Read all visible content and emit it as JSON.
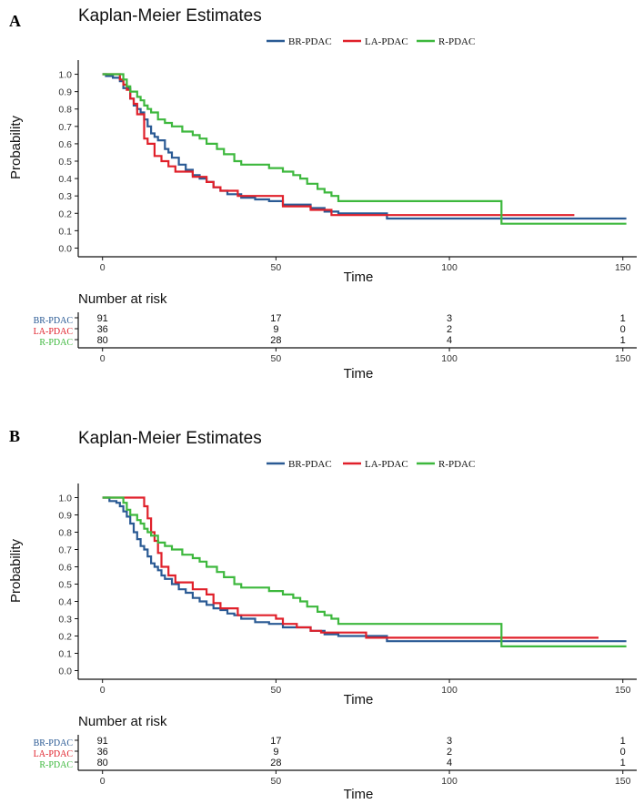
{
  "series_colors": {
    "BR-PDAC": "#2a5a94",
    "LA-PDAC": "#e0202a",
    "R-PDAC": "#3db83d"
  },
  "chart_data": [
    {
      "panel_label": "A",
      "type": "line",
      "title": "Kaplan-Meier Estimates",
      "xlabel": "Time",
      "ylabel": "Probability",
      "xlim": [
        -7,
        154
      ],
      "ylim": [
        -0.05,
        1.05
      ],
      "xticks": [
        0,
        50,
        100,
        150
      ],
      "yticks": [
        0.0,
        0.1,
        0.2,
        0.3,
        0.4,
        0.5,
        0.6,
        0.7,
        0.8,
        0.9,
        1.0
      ],
      "legend": "top",
      "series": [
        {
          "name": "BR-PDAC",
          "x": [
            0,
            1,
            3,
            5,
            6,
            8,
            9,
            10,
            11,
            12,
            13,
            14,
            15,
            16,
            18,
            19,
            20,
            22,
            24,
            26,
            28,
            30,
            32,
            34,
            36,
            40,
            44,
            48,
            52,
            56,
            60,
            64,
            68,
            82,
            151
          ],
          "y": [
            1.0,
            0.99,
            0.98,
            0.96,
            0.92,
            0.86,
            0.82,
            0.8,
            0.78,
            0.74,
            0.7,
            0.66,
            0.64,
            0.62,
            0.57,
            0.55,
            0.52,
            0.48,
            0.45,
            0.42,
            0.4,
            0.38,
            0.35,
            0.33,
            0.31,
            0.29,
            0.28,
            0.27,
            0.25,
            0.25,
            0.23,
            0.21,
            0.2,
            0.17,
            0.17
          ]
        },
        {
          "name": "LA-PDAC",
          "x": [
            0,
            5,
            6,
            7,
            8,
            9,
            10,
            12,
            13,
            15,
            17,
            19,
            21,
            26,
            30,
            32,
            34,
            39,
            44,
            51,
            52,
            56,
            60,
            63,
            66,
            76,
            80,
            136
          ],
          "y": [
            1.0,
            0.97,
            0.94,
            0.91,
            0.86,
            0.83,
            0.77,
            0.63,
            0.6,
            0.53,
            0.5,
            0.47,
            0.44,
            0.41,
            0.38,
            0.35,
            0.33,
            0.3,
            0.3,
            0.3,
            0.24,
            0.24,
            0.22,
            0.22,
            0.19,
            0.19,
            0.19,
            0.19
          ]
        },
        {
          "name": "R-PDAC",
          "x": [
            0,
            4,
            6,
            7,
            8,
            10,
            11,
            12,
            13,
            14,
            16,
            18,
            20,
            23,
            26,
            28,
            30,
            33,
            35,
            38,
            40,
            42,
            48,
            52,
            55,
            57,
            59,
            62,
            64,
            66,
            68,
            76,
            114,
            115,
            151
          ],
          "y": [
            1.0,
            1.0,
            0.97,
            0.93,
            0.9,
            0.87,
            0.85,
            0.82,
            0.8,
            0.78,
            0.74,
            0.72,
            0.7,
            0.67,
            0.65,
            0.63,
            0.6,
            0.57,
            0.54,
            0.5,
            0.48,
            0.48,
            0.46,
            0.44,
            0.42,
            0.4,
            0.37,
            0.34,
            0.32,
            0.3,
            0.27,
            0.27,
            0.27,
            0.14,
            0.14
          ]
        }
      ],
      "risk_table": {
        "title": "Number at risk",
        "times": [
          0,
          50,
          100,
          150
        ],
        "rows": [
          {
            "name": "BR-PDAC",
            "counts": [
              "91",
              "17",
              "3",
              "1"
            ]
          },
          {
            "name": "LA-PDAC",
            "counts": [
              "36",
              "9",
              "2",
              "0"
            ]
          },
          {
            "name": "R-PDAC",
            "counts": [
              "80",
              "28",
              "4",
              "1"
            ]
          }
        ],
        "xlabel": "Time"
      }
    },
    {
      "panel_label": "B",
      "type": "line",
      "title": "Kaplan-Meier Estimates",
      "xlabel": "Time",
      "ylabel": "Probability",
      "xlim": [
        -7,
        154
      ],
      "ylim": [
        -0.05,
        1.05
      ],
      "xticks": [
        0,
        50,
        100,
        150
      ],
      "yticks": [
        0.0,
        0.1,
        0.2,
        0.3,
        0.4,
        0.5,
        0.6,
        0.7,
        0.8,
        0.9,
        1.0
      ],
      "legend": "top",
      "series": [
        {
          "name": "BR-PDAC",
          "x": [
            0,
            2,
            4,
            5,
            6,
            7,
            8,
            9,
            10,
            11,
            12,
            13,
            14,
            15,
            16,
            17,
            18,
            20,
            22,
            24,
            26,
            28,
            30,
            32,
            34,
            36,
            38,
            40,
            44,
            48,
            52,
            56,
            60,
            64,
            68,
            82,
            151
          ],
          "y": [
            1.0,
            0.98,
            0.97,
            0.95,
            0.92,
            0.89,
            0.85,
            0.8,
            0.76,
            0.72,
            0.7,
            0.66,
            0.62,
            0.6,
            0.58,
            0.55,
            0.53,
            0.5,
            0.47,
            0.45,
            0.42,
            0.4,
            0.38,
            0.36,
            0.35,
            0.33,
            0.32,
            0.3,
            0.28,
            0.27,
            0.25,
            0.25,
            0.23,
            0.21,
            0.2,
            0.17,
            0.17
          ]
        },
        {
          "name": "LA-PDAC",
          "x": [
            0,
            10,
            12,
            13,
            14,
            15,
            16,
            17,
            19,
            21,
            26,
            30,
            32,
            34,
            39,
            44,
            50,
            52,
            56,
            60,
            63,
            66,
            76,
            80,
            143
          ],
          "y": [
            1.0,
            1.0,
            0.95,
            0.88,
            0.8,
            0.75,
            0.68,
            0.6,
            0.55,
            0.51,
            0.47,
            0.44,
            0.39,
            0.36,
            0.32,
            0.32,
            0.3,
            0.27,
            0.25,
            0.23,
            0.22,
            0.22,
            0.19,
            0.19,
            0.19
          ]
        },
        {
          "name": "R-PDAC",
          "x": [
            0,
            4,
            6,
            7,
            8,
            10,
            11,
            12,
            13,
            14,
            16,
            18,
            20,
            23,
            26,
            28,
            30,
            33,
            35,
            38,
            40,
            42,
            48,
            52,
            55,
            57,
            59,
            62,
            64,
            66,
            68,
            76,
            114,
            115,
            151
          ],
          "y": [
            1.0,
            1.0,
            0.97,
            0.93,
            0.9,
            0.87,
            0.85,
            0.82,
            0.8,
            0.78,
            0.74,
            0.72,
            0.7,
            0.67,
            0.65,
            0.63,
            0.6,
            0.57,
            0.54,
            0.5,
            0.48,
            0.48,
            0.46,
            0.44,
            0.42,
            0.4,
            0.37,
            0.34,
            0.32,
            0.3,
            0.27,
            0.27,
            0.27,
            0.14,
            0.14
          ]
        }
      ],
      "risk_table": {
        "title": "Number at risk",
        "times": [
          0,
          50,
          100,
          150
        ],
        "rows": [
          {
            "name": "BR-PDAC",
            "counts": [
              "91",
              "17",
              "3",
              "1"
            ]
          },
          {
            "name": "LA-PDAC",
            "counts": [
              "36",
              "9",
              "2",
              "0"
            ]
          },
          {
            "name": "R-PDAC",
            "counts": [
              "80",
              "28",
              "4",
              "1"
            ]
          }
        ],
        "xlabel": "Time"
      }
    }
  ]
}
